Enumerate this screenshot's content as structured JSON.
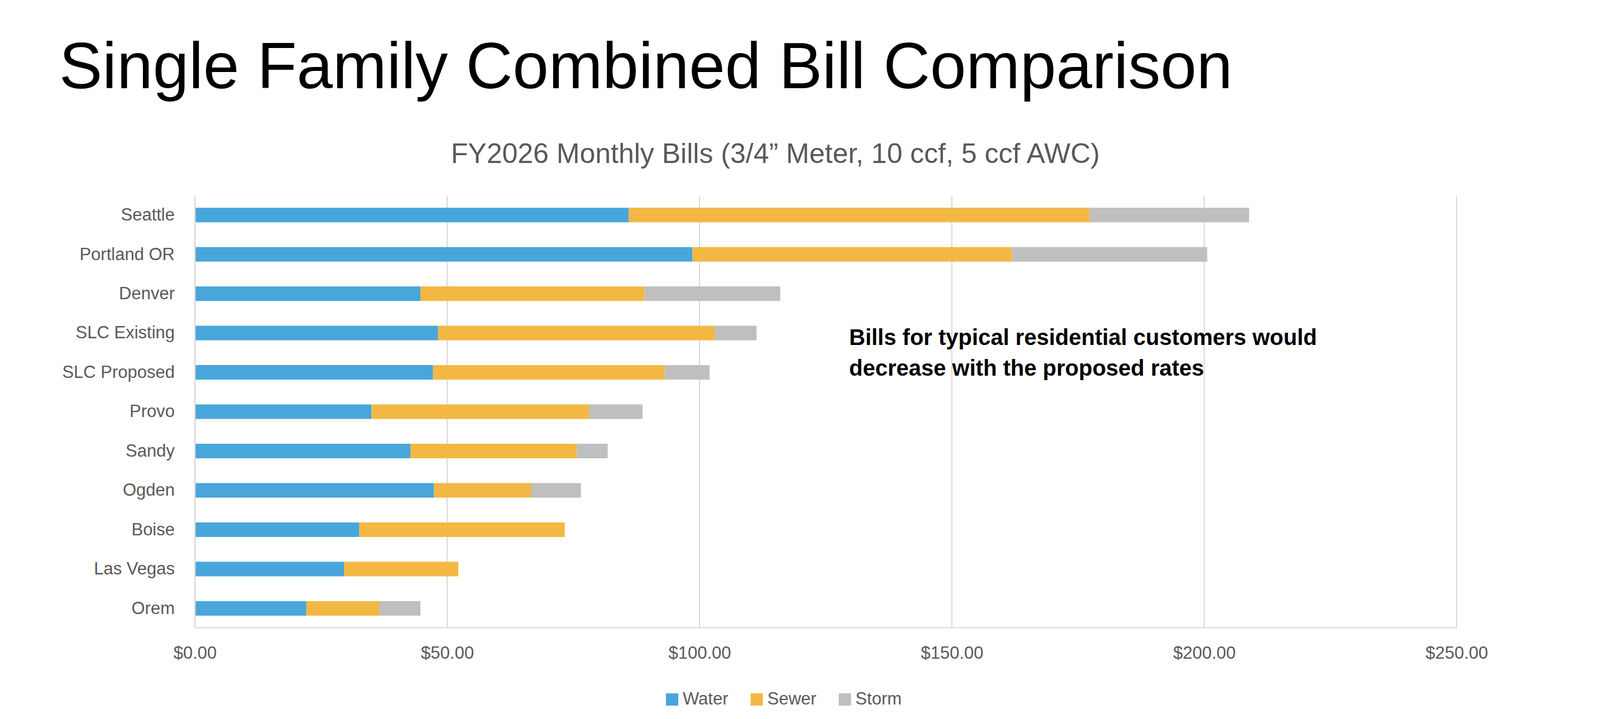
{
  "chart_data": {
    "type": "bar",
    "orientation": "horizontal",
    "stacked": true,
    "title": "Single Family Combined Bill Comparison",
    "subtitle": "FY2026 Monthly Bills (3/4” Meter, 10 ccf, 5 ccf AWC)",
    "annotation": [
      "Bills for typical residential customers would",
      "decrease with the proposed rates"
    ],
    "categories": [
      "Seattle",
      "Portland OR",
      "Denver",
      "SLC Existing",
      "SLC Proposed",
      "Provo",
      "Sandy",
      "Ogden",
      "Boise",
      "Las Vegas",
      "Orem"
    ],
    "series": [
      {
        "name": "Water",
        "color": "#48a6db",
        "values": [
          86.0,
          98.6,
          44.7,
          48.2,
          47.2,
          35.0,
          42.7,
          47.4,
          32.6,
          29.6,
          22.1
        ]
      },
      {
        "name": "Sewer",
        "color": "#f3b843",
        "values": [
          91.3,
          63.3,
          44.4,
          54.8,
          45.9,
          43.1,
          33.0,
          19.2,
          40.7,
          22.6,
          14.5
        ]
      },
      {
        "name": "Storm",
        "color": "#bfbfbf",
        "values": [
          31.6,
          38.7,
          26.9,
          8.3,
          8.9,
          10.6,
          6.1,
          9.9,
          null,
          null,
          8.1
        ]
      }
    ],
    "xlim": [
      0,
      250
    ],
    "xticks": [
      {
        "value": 0,
        "label": "$0.00"
      },
      {
        "value": 50,
        "label": "$50.00"
      },
      {
        "value": 100,
        "label": "$100.00"
      },
      {
        "value": 150,
        "label": "$150.00"
      },
      {
        "value": 200,
        "label": "$200.00"
      },
      {
        "value": 250,
        "label": "$250.00"
      }
    ],
    "grid": true,
    "legend": "bottom"
  }
}
